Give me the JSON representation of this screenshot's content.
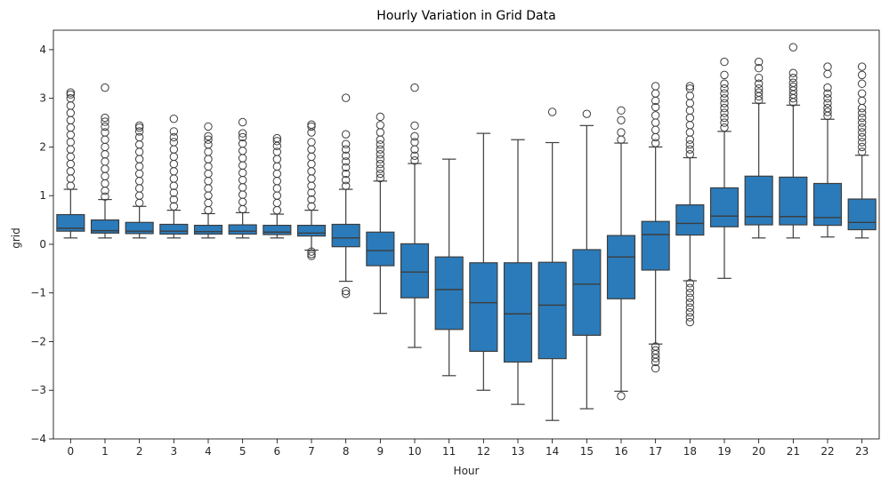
{
  "chart_data": {
    "type": "box",
    "title": "Hourly Variation in Grid Data",
    "xlabel": "Hour",
    "ylabel": "grid",
    "ylim": [
      -4.0,
      4.4
    ],
    "yticks": [
      -4,
      -3,
      -2,
      -1,
      0,
      1,
      2,
      3,
      4
    ],
    "grid": false,
    "box_color": "#2b7bba",
    "edge_color": "#3d3d3d",
    "categories": [
      "0",
      "1",
      "2",
      "3",
      "4",
      "5",
      "6",
      "7",
      "8",
      "9",
      "10",
      "11",
      "12",
      "13",
      "14",
      "15",
      "16",
      "17",
      "18",
      "19",
      "20",
      "21",
      "22",
      "23"
    ],
    "boxes": [
      {
        "hour": "0",
        "whisker_low": 0.13,
        "q1": 0.27,
        "median": 0.33,
        "q3": 0.61,
        "whisker_high": 1.13,
        "outliers_low": [],
        "outliers_high": [
          1.2,
          1.35,
          1.5,
          1.65,
          1.8,
          1.95,
          2.1,
          2.25,
          2.4,
          2.55,
          2.7,
          2.85,
          3.0,
          3.08,
          3.12
        ]
      },
      {
        "hour": "1",
        "whisker_low": 0.13,
        "q1": 0.23,
        "median": 0.28,
        "q3": 0.5,
        "whisker_high": 0.92,
        "outliers_low": [],
        "outliers_high": [
          0.98,
          1.1,
          1.25,
          1.4,
          1.55,
          1.7,
          1.85,
          2.0,
          2.15,
          2.3,
          2.42,
          2.52,
          2.6,
          3.22
        ]
      },
      {
        "hour": "2",
        "whisker_low": 0.13,
        "q1": 0.22,
        "median": 0.27,
        "q3": 0.45,
        "whisker_high": 0.78,
        "outliers_low": [],
        "outliers_high": [
          0.85,
          1.0,
          1.15,
          1.3,
          1.45,
          1.6,
          1.75,
          1.9,
          2.05,
          2.2,
          2.32,
          2.4,
          2.44
        ]
      },
      {
        "hour": "3",
        "whisker_low": 0.13,
        "q1": 0.21,
        "median": 0.27,
        "q3": 0.41,
        "whisker_high": 0.7,
        "outliers_low": [],
        "outliers_high": [
          0.78,
          0.92,
          1.06,
          1.2,
          1.35,
          1.5,
          1.65,
          1.8,
          1.95,
          2.1,
          2.2,
          2.32,
          2.58
        ]
      },
      {
        "hour": "4",
        "whisker_low": 0.13,
        "q1": 0.21,
        "median": 0.26,
        "q3": 0.39,
        "whisker_high": 0.63,
        "outliers_low": [],
        "outliers_high": [
          0.7,
          0.85,
          1.0,
          1.15,
          1.3,
          1.45,
          1.6,
          1.75,
          1.9,
          2.05,
          2.15,
          2.22,
          2.42
        ]
      },
      {
        "hour": "5",
        "whisker_low": 0.13,
        "q1": 0.21,
        "median": 0.27,
        "q3": 0.4,
        "whisker_high": 0.65,
        "outliers_low": [],
        "outliers_high": [
          0.72,
          0.87,
          1.02,
          1.17,
          1.32,
          1.47,
          1.62,
          1.77,
          1.92,
          2.07,
          2.2,
          2.28,
          2.51
        ]
      },
      {
        "hour": "6",
        "whisker_low": 0.13,
        "q1": 0.2,
        "median": 0.25,
        "q3": 0.39,
        "whisker_high": 0.62,
        "outliers_low": [],
        "outliers_high": [
          0.7,
          0.85,
          1.0,
          1.15,
          1.3,
          1.45,
          1.6,
          1.75,
          1.9,
          2.02,
          2.12,
          2.18
        ]
      },
      {
        "hour": "7",
        "whisker_low": -0.12,
        "q1": 0.17,
        "median": 0.23,
        "q3": 0.39,
        "whisker_high": 0.7,
        "outliers_low": [
          -0.15,
          -0.2,
          -0.24
        ],
        "outliers_high": [
          0.78,
          0.92,
          1.06,
          1.2,
          1.35,
          1.5,
          1.65,
          1.8,
          1.95,
          2.1,
          2.3,
          2.42,
          2.46
        ]
      },
      {
        "hour": "8",
        "whisker_low": -0.76,
        "q1": -0.05,
        "median": 0.13,
        "q3": 0.41,
        "whisker_high": 1.13,
        "outliers_low": [
          -0.96,
          -1.02
        ],
        "outliers_high": [
          1.2,
          1.32,
          1.45,
          1.58,
          1.7,
          1.82,
          1.95,
          2.06,
          2.26,
          3.01
        ]
      },
      {
        "hour": "9",
        "whisker_low": -1.42,
        "q1": -0.44,
        "median": -0.13,
        "q3": 0.25,
        "whisker_high": 1.3,
        "outliers_low": [],
        "outliers_high": [
          1.36,
          1.45,
          1.55,
          1.65,
          1.75,
          1.85,
          1.95,
          2.05,
          2.15,
          2.3,
          2.45,
          2.62
        ]
      },
      {
        "hour": "10",
        "whisker_low": -2.12,
        "q1": -1.1,
        "median": -0.57,
        "q3": 0.01,
        "whisker_high": 1.66,
        "outliers_low": [],
        "outliers_high": [
          1.72,
          1.82,
          1.95,
          2.1,
          2.22,
          2.44,
          3.22
        ]
      },
      {
        "hour": "11",
        "whisker_low": -2.7,
        "q1": -1.75,
        "median": -0.93,
        "q3": -0.26,
        "whisker_high": 1.75,
        "outliers_low": [],
        "outliers_high": []
      },
      {
        "hour": "12",
        "whisker_low": -3.0,
        "q1": -2.2,
        "median": -1.2,
        "q3": -0.38,
        "whisker_high": 2.28,
        "outliers_low": [],
        "outliers_high": []
      },
      {
        "hour": "13",
        "whisker_low": -3.29,
        "q1": -2.42,
        "median": -1.43,
        "q3": -0.38,
        "whisker_high": 2.15,
        "outliers_low": [],
        "outliers_high": []
      },
      {
        "hour": "14",
        "whisker_low": -3.62,
        "q1": -2.35,
        "median": -1.25,
        "q3": -0.37,
        "whisker_high": 2.09,
        "outliers_low": [],
        "outliers_high": [
          2.72
        ]
      },
      {
        "hour": "15",
        "whisker_low": -3.38,
        "q1": -1.87,
        "median": -0.82,
        "q3": -0.11,
        "whisker_high": 2.44,
        "outliers_low": [],
        "outliers_high": [
          2.68
        ]
      },
      {
        "hour": "16",
        "whisker_low": -3.02,
        "q1": -1.12,
        "median": -0.26,
        "q3": 0.18,
        "whisker_high": 2.08,
        "outliers_low": [
          -3.12
        ],
        "outliers_high": [
          2.15,
          2.3,
          2.55,
          2.75
        ]
      },
      {
        "hour": "17",
        "whisker_low": -2.05,
        "q1": -0.53,
        "median": 0.2,
        "q3": 0.47,
        "whisker_high": 2.0,
        "outliers_low": [
          -2.1,
          -2.18,
          -2.26,
          -2.34,
          -2.42,
          -2.55
        ],
        "outliers_high": [
          2.08,
          2.2,
          2.35,
          2.5,
          2.65,
          2.82,
          2.95,
          3.1,
          3.25
        ]
      },
      {
        "hour": "18",
        "whisker_low": -0.75,
        "q1": 0.19,
        "median": 0.43,
        "q3": 0.81,
        "whisker_high": 1.78,
        "outliers_low": [
          -0.8,
          -0.9,
          -1.0,
          -1.1,
          -1.2,
          -1.3,
          -1.4,
          -1.5,
          -1.6
        ],
        "outliers_high": [
          1.85,
          1.95,
          2.05,
          2.15,
          2.3,
          2.45,
          2.6,
          2.75,
          2.9,
          3.05,
          3.2,
          3.25
        ]
      },
      {
        "hour": "19",
        "whisker_low": -0.7,
        "q1": 0.36,
        "median": 0.58,
        "q3": 1.16,
        "whisker_high": 2.32,
        "outliers_low": [],
        "outliers_high": [
          2.4,
          2.5,
          2.6,
          2.7,
          2.8,
          2.9,
          3.0,
          3.1,
          3.2,
          3.3,
          3.48,
          3.75
        ]
      },
      {
        "hour": "20",
        "whisker_low": 0.13,
        "q1": 0.4,
        "median": 0.57,
        "q3": 1.4,
        "whisker_high": 2.9,
        "outliers_low": [],
        "outliers_high": [
          2.96,
          3.04,
          3.12,
          3.2,
          3.3,
          3.42,
          3.62,
          3.75
        ]
      },
      {
        "hour": "21",
        "whisker_low": 0.13,
        "q1": 0.4,
        "median": 0.57,
        "q3": 1.38,
        "whisker_high": 2.86,
        "outliers_low": [],
        "outliers_high": [
          2.92,
          3.0,
          3.08,
          3.16,
          3.24,
          3.32,
          3.42,
          3.52,
          4.05
        ]
      },
      {
        "hour": "22",
        "whisker_low": 0.15,
        "q1": 0.39,
        "median": 0.55,
        "q3": 1.25,
        "whisker_high": 2.57,
        "outliers_low": [],
        "outliers_high": [
          2.64,
          2.72,
          2.8,
          2.9,
          3.0,
          3.1,
          3.22,
          3.5,
          3.65
        ]
      },
      {
        "hour": "23",
        "whisker_low": 0.13,
        "q1": 0.3,
        "median": 0.45,
        "q3": 0.93,
        "whisker_high": 1.83,
        "outliers_low": [],
        "outliers_high": [
          1.9,
          2.0,
          2.1,
          2.2,
          2.3,
          2.4,
          2.5,
          2.6,
          2.7,
          2.8,
          2.95,
          3.1,
          3.3,
          3.48,
          3.65
        ]
      }
    ]
  }
}
